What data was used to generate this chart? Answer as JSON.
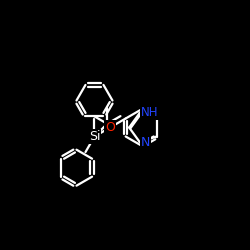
{
  "bg_color": "#000000",
  "bond_color": "#ffffff",
  "bond_width": 1.6,
  "figsize": [
    2.5,
    2.5
  ],
  "dpi": 100,
  "si_label": "Si",
  "si_color": "#ffffff",
  "o_label": "O",
  "o_color": "#ff2200",
  "nh_label": "NH",
  "nh_color": "#2244ff",
  "n_label": "N",
  "n_color": "#2244ff",
  "label_fontsize": 9
}
